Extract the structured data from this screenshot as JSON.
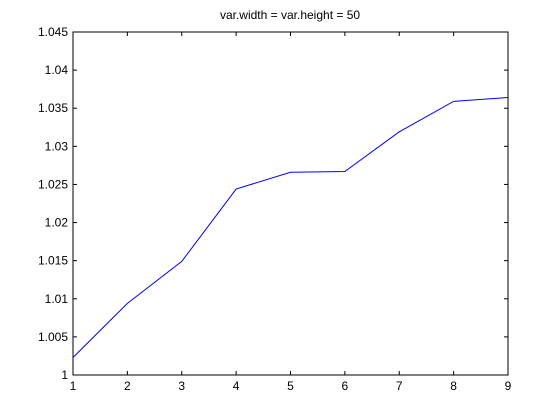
{
  "chart_data": {
    "type": "line",
    "title": "var.width  = var.height = 50",
    "xlabel": "",
    "ylabel": "",
    "xlim": [
      1,
      9
    ],
    "ylim": [
      1,
      1.045
    ],
    "x_ticks": [
      1,
      2,
      3,
      4,
      5,
      6,
      7,
      8,
      9
    ],
    "x_tick_labels": [
      "1",
      "2",
      "3",
      "4",
      "5",
      "6",
      "7",
      "8",
      "9"
    ],
    "y_ticks": [
      1,
      1.005,
      1.01,
      1.015,
      1.02,
      1.025,
      1.03,
      1.035,
      1.04,
      1.045
    ],
    "y_tick_labels": [
      "1",
      "1.005",
      "1.01",
      "1.015",
      "1.02",
      "1.025",
      "1.03",
      "1.035",
      "1.04",
      "1.045"
    ],
    "grid": false,
    "legend": "none",
    "series": [
      {
        "color": "#0000ff",
        "x": [
          1,
          2,
          3,
          4,
          5,
          6,
          7,
          8,
          9
        ],
        "y": [
          1.0023,
          1.0094,
          1.0149,
          1.0244,
          1.0266,
          1.0267,
          1.0319,
          1.0359,
          1.0364
        ]
      }
    ]
  }
}
